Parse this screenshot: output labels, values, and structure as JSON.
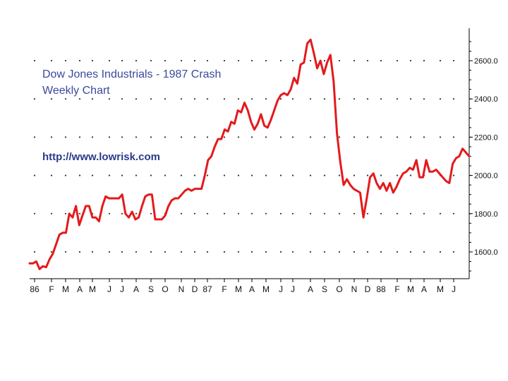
{
  "chart_data": {
    "type": "line",
    "title": "Dow Jones Industrials - 1987 Crash",
    "subtitle": "Weekly Chart",
    "annotation": "http://www.lowrisk.com",
    "ylim": [
      1460,
      2760
    ],
    "grid": "dotted",
    "y_axis_position": "right",
    "colors": {
      "line": "#e31a1c",
      "text": "#3a4a9a",
      "axis": "#000000"
    },
    "y_ticks": [
      {
        "value": 1600,
        "label": "1600.0"
      },
      {
        "value": 1800,
        "label": "1800.0"
      },
      {
        "value": 2000,
        "label": "2000.0"
      },
      {
        "value": 2200,
        "label": "2200.0"
      },
      {
        "value": 2400,
        "label": "2400.0"
      },
      {
        "value": 2600,
        "label": "2600.0"
      }
    ],
    "x_ticks": [
      "86",
      "F",
      "M",
      "A",
      "M",
      "J",
      "J",
      "A",
      "S",
      "O",
      "N",
      "D",
      "87",
      "F",
      "M",
      "A",
      "M",
      "J",
      "J",
      "A",
      "S",
      "O",
      "N",
      "D",
      "88",
      "F",
      "M",
      "A",
      "M",
      "J"
    ],
    "series": [
      {
        "values": [
          1540,
          1540,
          1550,
          1510,
          1525,
          1520,
          1560,
          1590,
          1640,
          1690,
          1700,
          1700,
          1800,
          1780,
          1840,
          1740,
          1790,
          1840,
          1840,
          1780,
          1780,
          1760,
          1840,
          1890,
          1880,
          1880,
          1880,
          1880,
          1900,
          1800,
          1780,
          1810,
          1770,
          1780,
          1840,
          1890,
          1900,
          1900,
          1770,
          1770,
          1770,
          1790,
          1840,
          1870,
          1880,
          1880,
          1900,
          1920,
          1930,
          1920,
          1930,
          1930,
          1930,
          2000,
          2080,
          2100,
          2150,
          2190,
          2190,
          2240,
          2230,
          2280,
          2270,
          2340,
          2330,
          2380,
          2340,
          2280,
          2240,
          2270,
          2320,
          2260,
          2250,
          2290,
          2340,
          2390,
          2420,
          2430,
          2420,
          2450,
          2510,
          2480,
          2580,
          2590,
          2690,
          2710,
          2640,
          2560,
          2600,
          2530,
          2590,
          2630,
          2490,
          2220,
          2070,
          1950,
          1980,
          1950,
          1930,
          1920,
          1910,
          1780,
          1880,
          1990,
          2010,
          1960,
          1930,
          1960,
          1920,
          1960,
          1910,
          1940,
          1980,
          2010,
          2020,
          2040,
          2030,
          2080,
          1990,
          1990,
          2080,
          2020,
          2020,
          2030,
          2010,
          1990,
          1970,
          1960,
          2060,
          2090,
          2100,
          2140,
          2120,
          2100
        ]
      }
    ]
  }
}
